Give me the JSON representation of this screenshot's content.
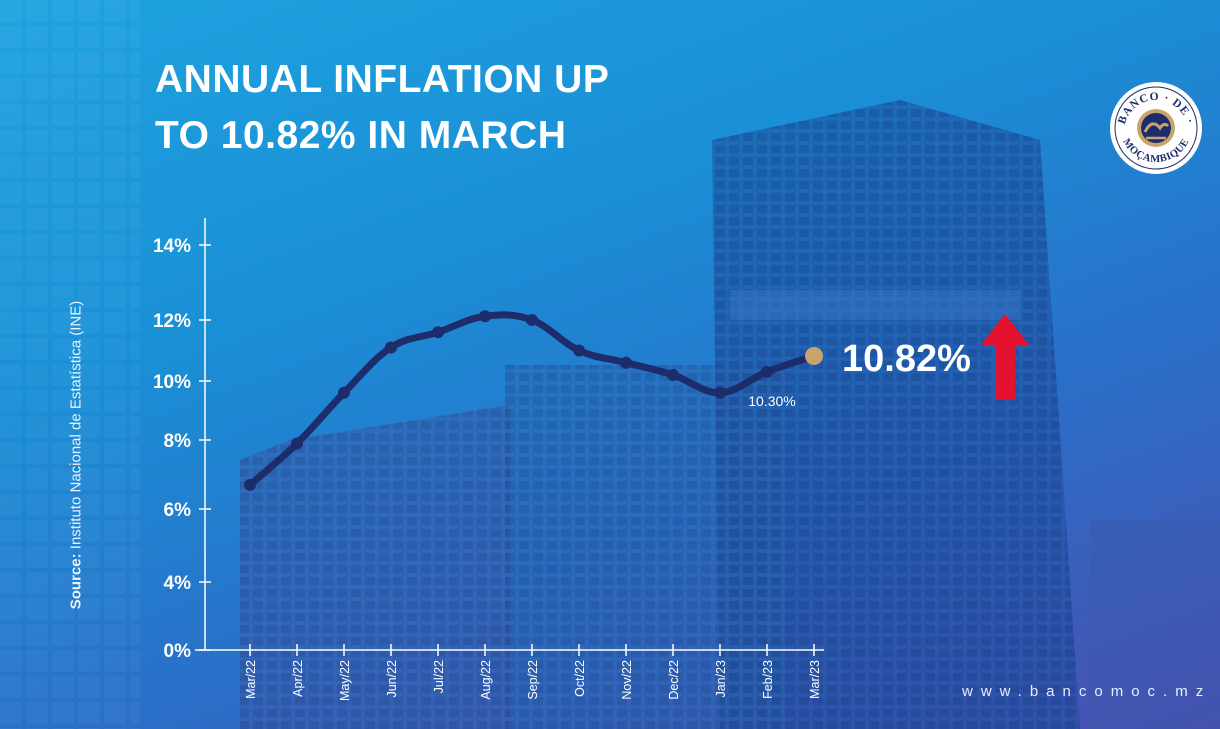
{
  "title": {
    "line1": "ANNUAL INFLATION UP",
    "line2": "TO 10.82% IN MARCH"
  },
  "source": {
    "label": "Source:",
    "text": " Instituto Nacional de Estatística (INE)"
  },
  "logo": {
    "text": "BANCO DE MOÇAMBIQUE",
    "word1": "BANCO",
    "word2": "DE",
    "word3": "MOÇAMBIQUE"
  },
  "website": "www.bancomoc.mz",
  "highlight": {
    "value_label": "10.82%",
    "arrow": "up-arrow-icon",
    "arrow_color": "#e3122f"
  },
  "colors": {
    "line": "#1d2d6b",
    "last_point": "#c9a46a",
    "text": "#ffffff"
  },
  "chart_data": {
    "type": "line",
    "title": "ANNUAL INFLATION UP TO 10.82% IN MARCH",
    "xlabel": "",
    "ylabel": "",
    "categories": [
      "Mar/22",
      "Apr/22",
      "May/22",
      "Jun/22",
      "Jul/22",
      "Aug/22",
      "Sep/22",
      "Oct/22",
      "Nov/22",
      "Dec/22",
      "Jan/23",
      "Feb/23",
      "Mar/23"
    ],
    "series": [
      {
        "values": [
          6.7,
          7.9,
          9.6,
          11.1,
          11.6,
          12.1,
          12.0,
          11.0,
          10.6,
          10.2,
          9.6,
          10.3,
          10.82
        ]
      }
    ],
    "y_ticks": [
      {
        "value": 0,
        "label": "0%"
      },
      {
        "value": 4,
        "label": "4%"
      },
      {
        "value": 6,
        "label": "6%"
      },
      {
        "value": 8,
        "label": "8%"
      },
      {
        "value": 10,
        "label": "10%"
      },
      {
        "value": 12,
        "label": "12%"
      },
      {
        "value": 14,
        "label": "14%"
      }
    ],
    "data_labels": [
      {
        "index": 11,
        "text": "10.30%"
      }
    ],
    "ylim": [
      0,
      14
    ],
    "grid": false,
    "legend": "none"
  }
}
